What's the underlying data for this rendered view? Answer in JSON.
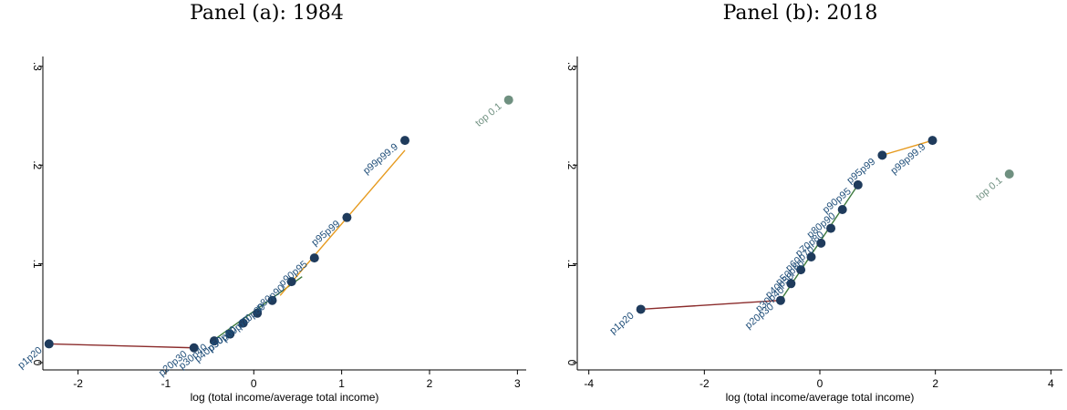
{
  "colors": {
    "point": "#1f3b5c",
    "label": "#1f4e79",
    "top_point": "#6f9080",
    "line_red": "#8b2c2c",
    "line_green": "#3d7a3d",
    "line_orange": "#e69a1e"
  },
  "chart_data": [
    {
      "type": "scatter",
      "title": "Panel (a): 1984",
      "xlabel": "log (total income/average total income)",
      "ylabel": "",
      "xlim": [
        -2.4,
        3.1
      ],
      "ylim": [
        0,
        0.31
      ],
      "xticks": [
        "-2",
        "-1",
        "0",
        "1",
        "2",
        "3"
      ],
      "xtick_values": [
        -2,
        -1,
        0,
        1,
        2,
        3
      ],
      "yticks": [
        "0",
        ".1",
        ".2",
        ".3"
      ],
      "ytick_values": [
        0,
        0.1,
        0.2,
        0.3
      ],
      "points": [
        {
          "label": "p1p20",
          "x": -2.33,
          "y": 0.019
        },
        {
          "label": "p20p30",
          "x": -0.68,
          "y": 0.015
        },
        {
          "label": "p30p40",
          "x": -0.45,
          "y": 0.022
        },
        {
          "label": "p40p50",
          "x": -0.27,
          "y": 0.029
        },
        {
          "label": "p50p60",
          "x": -0.12,
          "y": 0.04
        },
        {
          "label": "p60p70",
          "x": 0.04,
          "y": 0.05
        },
        {
          "label": "p70p80",
          "x": 0.21,
          "y": 0.063
        },
        {
          "label": "p80p90",
          "x": 0.43,
          "y": 0.082
        },
        {
          "label": "p90p95",
          "x": 0.69,
          "y": 0.106
        },
        {
          "label": "p95p99",
          "x": 1.06,
          "y": 0.147
        },
        {
          "label": "p99p99.9",
          "x": 1.72,
          "y": 0.225
        },
        {
          "label": "top 0.1",
          "x": 2.9,
          "y": 0.266,
          "top": true
        }
      ],
      "segments": [
        {
          "color": "line_red",
          "from": [
            -2.33,
            0.019
          ],
          "to": [
            -0.68,
            0.015
          ]
        },
        {
          "color": "line_green",
          "from": [
            -0.5,
            0.02
          ],
          "to": [
            0.55,
            0.087
          ]
        },
        {
          "color": "line_orange",
          "from": [
            0.3,
            0.068
          ],
          "to": [
            1.72,
            0.215
          ]
        }
      ]
    },
    {
      "type": "scatter",
      "title": "Panel (b): 2018",
      "xlabel": "log (total income/average total income)",
      "ylabel": "",
      "xlim": [
        -4.2,
        4.2
      ],
      "ylim": [
        0,
        0.31
      ],
      "xticks": [
        "-4",
        "-2",
        "0",
        "2",
        "4"
      ],
      "xtick_values": [
        -4,
        -2,
        0,
        2,
        4
      ],
      "yticks": [
        "0",
        ".1",
        ".2",
        ".3"
      ],
      "ytick_values": [
        0,
        0.1,
        0.2,
        0.3
      ],
      "points": [
        {
          "label": "p1p20",
          "x": -3.1,
          "y": 0.054
        },
        {
          "label": "p20p30",
          "x": -0.68,
          "y": 0.063
        },
        {
          "label": "p30p40",
          "x": -0.5,
          "y": 0.08
        },
        {
          "label": "p40p50",
          "x": -0.33,
          "y": 0.094
        },
        {
          "label": "p50p60",
          "x": -0.15,
          "y": 0.107
        },
        {
          "label": "p60p70",
          "x": 0.02,
          "y": 0.121
        },
        {
          "label": "p70p80",
          "x": 0.19,
          "y": 0.136
        },
        {
          "label": "p80p90",
          "x": 0.39,
          "y": 0.155
        },
        {
          "label": "p90p95",
          "x": 0.66,
          "y": 0.18
        },
        {
          "label": "p95p99",
          "x": 1.08,
          "y": 0.21
        },
        {
          "label": "p99p99.9",
          "x": 1.95,
          "y": 0.225
        },
        {
          "label": "top 0.1",
          "x": 3.28,
          "y": 0.191,
          "top": true
        }
      ],
      "segments": [
        {
          "color": "line_red",
          "from": [
            -3.1,
            0.054
          ],
          "to": [
            -0.68,
            0.063
          ]
        },
        {
          "color": "line_green",
          "from": [
            -0.68,
            0.063
          ],
          "to": [
            0.66,
            0.18
          ]
        },
        {
          "color": "line_orange",
          "from": [
            1.08,
            0.21
          ],
          "to": [
            1.95,
            0.225
          ]
        }
      ]
    }
  ]
}
